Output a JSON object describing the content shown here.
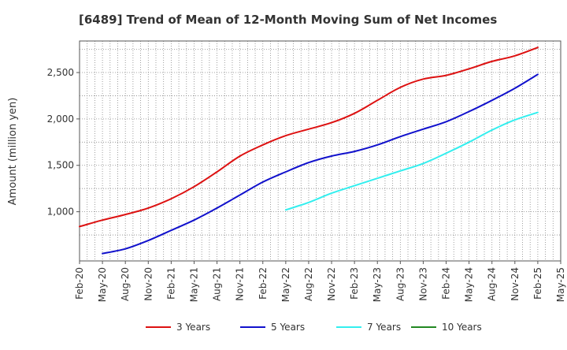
{
  "chart_data": {
    "type": "line",
    "title": "[6489]  Trend of Mean of 12-Month Moving Sum of Net Incomes",
    "ylabel": "Amount (million yen)",
    "xlabel": "",
    "x_ticks": [
      "Feb-20",
      "May-20",
      "Aug-20",
      "Nov-20",
      "Feb-21",
      "May-21",
      "Aug-21",
      "Nov-21",
      "Feb-22",
      "May-22",
      "Aug-22",
      "Nov-22",
      "Feb-23",
      "May-23",
      "Aug-23",
      "Nov-23",
      "Feb-24",
      "May-24",
      "Aug-24",
      "Nov-24",
      "Feb-25",
      "May-25"
    ],
    "y_ticks": [
      "1,000",
      "1,500",
      "2,000",
      "2,500"
    ],
    "y_tick_values": [
      1000,
      1500,
      2000,
      2500
    ],
    "ylim": [
      470,
      2840
    ],
    "grid": true,
    "legend_position": "bottom",
    "series": [
      {
        "name": "3 Years",
        "color": "#dd1111",
        "points": [
          [
            "Feb-20",
            840
          ],
          [
            "May-20",
            910
          ],
          [
            "Aug-20",
            970
          ],
          [
            "Nov-20",
            1040
          ],
          [
            "Feb-21",
            1140
          ],
          [
            "May-21",
            1270
          ],
          [
            "Aug-21",
            1430
          ],
          [
            "Nov-21",
            1600
          ],
          [
            "Feb-22",
            1720
          ],
          [
            "May-22",
            1820
          ],
          [
            "Aug-22",
            1890
          ],
          [
            "Nov-22",
            1960
          ],
          [
            "Feb-23",
            2060
          ],
          [
            "May-23",
            2200
          ],
          [
            "Aug-23",
            2340
          ],
          [
            "Nov-23",
            2430
          ],
          [
            "Feb-24",
            2470
          ],
          [
            "May-24",
            2540
          ],
          [
            "Aug-24",
            2620
          ],
          [
            "Nov-24",
            2680
          ],
          [
            "Feb-25",
            2770
          ]
        ]
      },
      {
        "name": "5 Years",
        "color": "#1111cc",
        "points": [
          [
            "May-20",
            550
          ],
          [
            "Aug-20",
            600
          ],
          [
            "Nov-20",
            690
          ],
          [
            "Feb-21",
            800
          ],
          [
            "May-21",
            910
          ],
          [
            "Aug-21",
            1040
          ],
          [
            "Nov-21",
            1180
          ],
          [
            "Feb-22",
            1320
          ],
          [
            "May-22",
            1430
          ],
          [
            "Aug-22",
            1530
          ],
          [
            "Nov-22",
            1600
          ],
          [
            "Feb-23",
            1650
          ],
          [
            "May-23",
            1720
          ],
          [
            "Aug-23",
            1810
          ],
          [
            "Nov-23",
            1890
          ],
          [
            "Feb-24",
            1970
          ],
          [
            "May-24",
            2080
          ],
          [
            "Aug-24",
            2200
          ],
          [
            "Nov-24",
            2330
          ],
          [
            "Feb-25",
            2480
          ]
        ]
      },
      {
        "name": "7 Years",
        "color": "#33eeee",
        "points": [
          [
            "May-22",
            1020
          ],
          [
            "Aug-22",
            1100
          ],
          [
            "Nov-22",
            1200
          ],
          [
            "Feb-23",
            1280
          ],
          [
            "May-23",
            1360
          ],
          [
            "Aug-23",
            1440
          ],
          [
            "Nov-23",
            1520
          ],
          [
            "Feb-24",
            1630
          ],
          [
            "May-24",
            1750
          ],
          [
            "Aug-24",
            1880
          ],
          [
            "Nov-24",
            1990
          ],
          [
            "Feb-25",
            2070
          ]
        ]
      },
      {
        "name": "10 Years",
        "color": "#228822",
        "points": []
      }
    ]
  }
}
